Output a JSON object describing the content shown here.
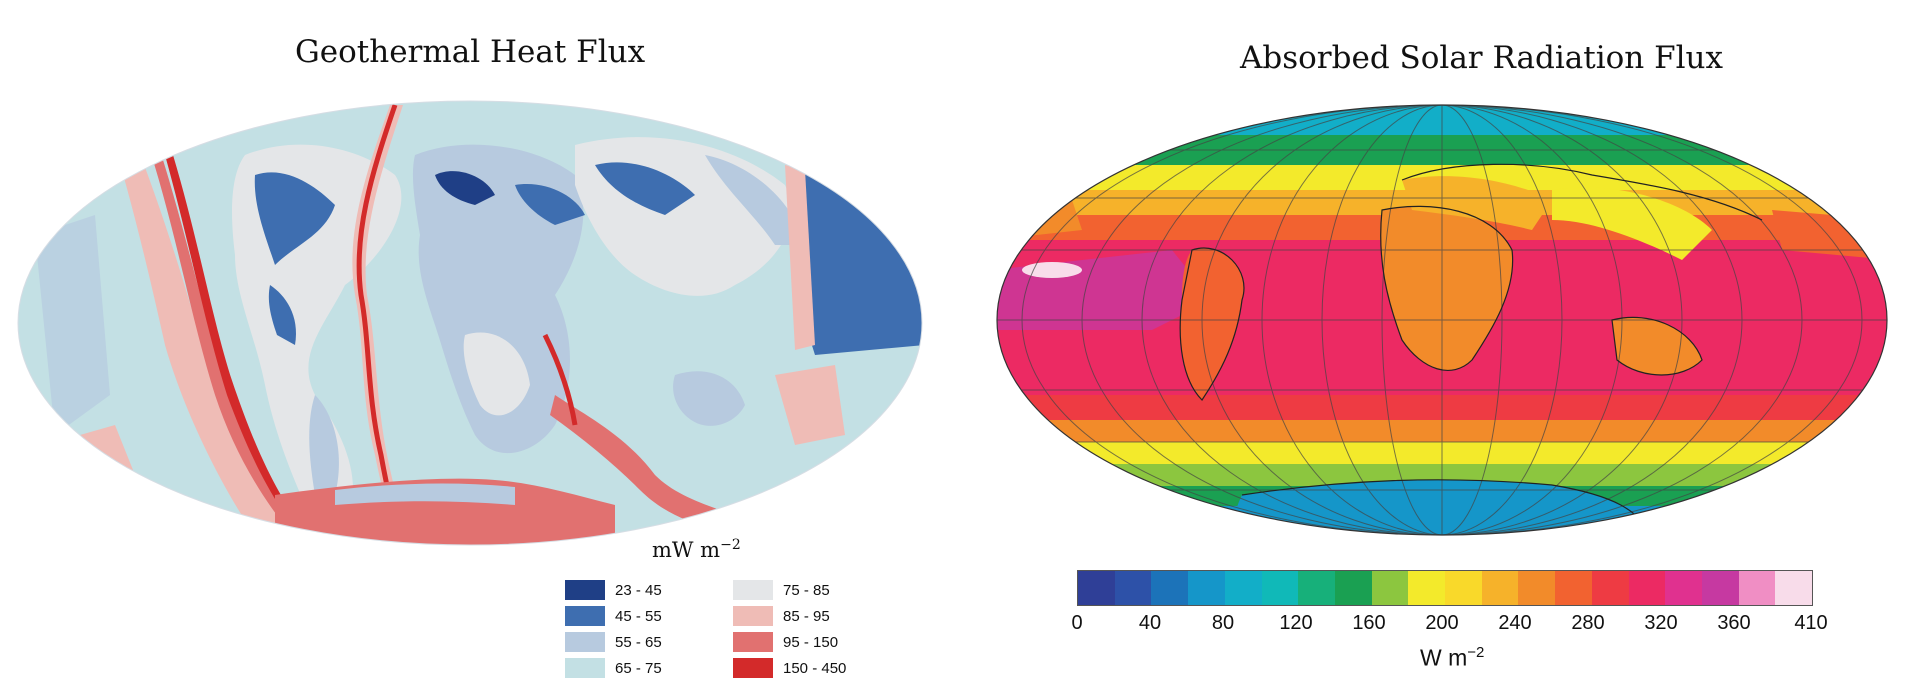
{
  "geothermal": {
    "title": "Geothermal Heat Flux",
    "unit": "mW m",
    "unit_exp": "−2",
    "legend": [
      {
        "label": "23 - 45",
        "color": "#1f3f86"
      },
      {
        "label": "45 - 55",
        "color": "#3e6eb0"
      },
      {
        "label": "55 - 65",
        "color": "#b7cadf"
      },
      {
        "label": "65 - 75",
        "color": "#c3e0e4"
      },
      {
        "label": "75 - 85",
        "color": "#e4e6e8"
      },
      {
        "label": "85 - 95",
        "color": "#efbcb6"
      },
      {
        "label": "95 - 150",
        "color": "#e17170"
      },
      {
        "label": "150 - 450",
        "color": "#d32a2a"
      }
    ]
  },
  "solar": {
    "title": "Absorbed Solar Radiation Flux",
    "unit": "W m",
    "unit_exp": "−2",
    "ticks": [
      "0",
      "40",
      "80",
      "120",
      "160",
      "200",
      "240",
      "280",
      "320",
      "360",
      "410"
    ],
    "colorbar": [
      "#2f3f97",
      "#2d51a8",
      "#1c73b9",
      "#1596c9",
      "#12aec8",
      "#10b9b8",
      "#17b07a",
      "#1aa052",
      "#8cc63f",
      "#f3ea2b",
      "#f9d92a",
      "#f6b22a",
      "#f28b2a",
      "#f26230",
      "#ee3b43",
      "#ec2a63",
      "#e0318f",
      "#c639a1",
      "#f08ec4",
      "#f8dcea"
    ]
  }
}
